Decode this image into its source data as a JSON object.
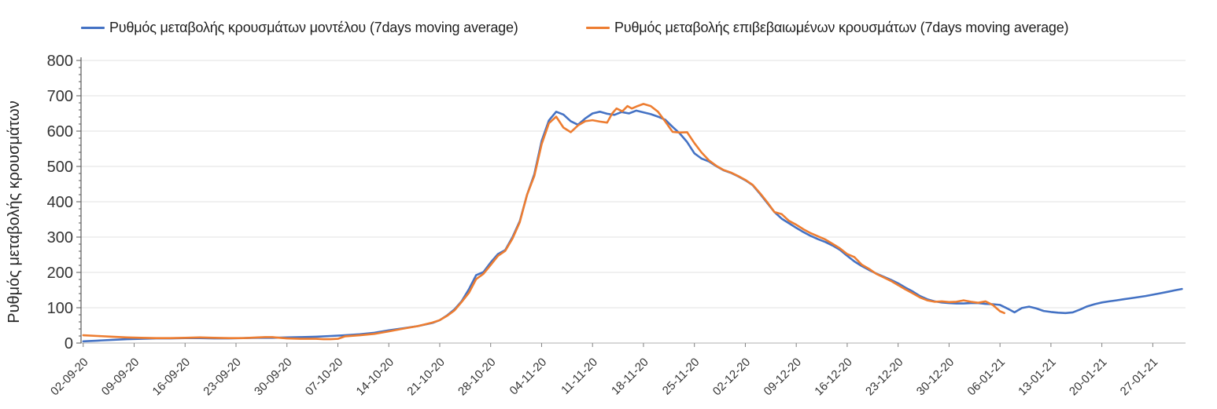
{
  "page": {
    "background": "#ffffff"
  },
  "colors": {
    "series_model": "#4472C4",
    "series_confirmed": "#ED7D31",
    "y_axis_line": "#595959",
    "x_axis_line": "#bfbfbf",
    "tick_mark": "#808080",
    "gridline": "#e2e2e2",
    "tick_label": "#333333",
    "axis_title": "#262626"
  },
  "chart_data": {
    "type": "line",
    "title": "",
    "xlabel": "",
    "ylabel": "Ρυθμός μεταβολής κρουσμάτων",
    "legend_position": "top",
    "grid": "horizontal-major",
    "x_unit": "days since 02-09-20, weekly ticks",
    "x_tick_interval_days": 7,
    "x_tick_labels": [
      "02-09-20",
      "09-09-20",
      "16-09-20",
      "23-09-20",
      "30-09-20",
      "07-10-20",
      "14-10-20",
      "21-10-20",
      "28-10-20",
      "04-11-20",
      "11-11-20",
      "18-11-20",
      "25-11-20",
      "02-12-20",
      "09-12-20",
      "16-12-20",
      "23-12-20",
      "30-12-20",
      "06-01-21",
      "13-01-21",
      "20-01-21",
      "27-01-21"
    ],
    "y_axis": {
      "min": 0,
      "max": 800,
      "tick_step": 100,
      "minor_tick_step": 20,
      "ticks": [
        "0",
        "100",
        "200",
        "300",
        "400",
        "500",
        "600",
        "700",
        "800"
      ]
    },
    "series": [
      {
        "name": "Ρυθμός μεταβολής κρουσμάτων μοντέλου (7days moving average)",
        "color": "#4472C4",
        "points": [
          [
            0,
            5
          ],
          [
            2,
            7
          ],
          [
            4,
            9
          ],
          [
            6,
            11
          ],
          [
            8,
            12
          ],
          [
            10,
            13
          ],
          [
            12,
            13
          ],
          [
            14,
            14
          ],
          [
            16,
            14
          ],
          [
            18,
            13
          ],
          [
            20,
            13
          ],
          [
            22,
            14
          ],
          [
            24,
            15
          ],
          [
            26,
            15
          ],
          [
            28,
            16
          ],
          [
            30,
            17
          ],
          [
            32,
            18
          ],
          [
            34,
            20
          ],
          [
            36,
            22
          ],
          [
            38,
            25
          ],
          [
            40,
            29
          ],
          [
            42,
            36
          ],
          [
            44,
            42
          ],
          [
            46,
            48
          ],
          [
            48,
            57
          ],
          [
            49,
            65
          ],
          [
            50,
            78
          ],
          [
            51,
            95
          ],
          [
            52,
            118
          ],
          [
            53,
            152
          ],
          [
            54,
            192
          ],
          [
            55,
            201
          ],
          [
            56,
            228
          ],
          [
            57,
            252
          ],
          [
            58,
            263
          ],
          [
            59,
            300
          ],
          [
            60,
            345
          ],
          [
            61,
            420
          ],
          [
            62,
            478
          ],
          [
            63,
            572
          ],
          [
            64,
            630
          ],
          [
            65,
            655
          ],
          [
            66,
            647
          ],
          [
            67,
            628
          ],
          [
            68,
            618
          ],
          [
            69,
            636
          ],
          [
            70,
            650
          ],
          [
            71,
            655
          ],
          [
            72,
            649
          ],
          [
            73,
            646
          ],
          [
            74,
            654
          ],
          [
            75,
            650
          ],
          [
            76,
            658
          ],
          [
            77,
            653
          ],
          [
            78,
            648
          ],
          [
            79,
            641
          ],
          [
            80,
            632
          ],
          [
            81,
            612
          ],
          [
            82,
            593
          ],
          [
            83,
            569
          ],
          [
            84,
            537
          ],
          [
            85,
            522
          ],
          [
            86,
            514
          ],
          [
            87,
            501
          ],
          [
            88,
            489
          ],
          [
            89,
            482
          ],
          [
            90,
            472
          ],
          [
            91,
            461
          ],
          [
            92,
            447
          ],
          [
            93,
            423
          ],
          [
            94,
            397
          ],
          [
            95,
            371
          ],
          [
            96,
            352
          ],
          [
            97,
            339
          ],
          [
            98,
            326
          ],
          [
            99,
            314
          ],
          [
            100,
            303
          ],
          [
            101,
            294
          ],
          [
            102,
            286
          ],
          [
            103,
            276
          ],
          [
            104,
            264
          ],
          [
            105,
            247
          ],
          [
            106,
            231
          ],
          [
            107,
            218
          ],
          [
            108,
            207
          ],
          [
            109,
            197
          ],
          [
            110,
            188
          ],
          [
            111,
            179
          ],
          [
            112,
            169
          ],
          [
            113,
            157
          ],
          [
            114,
            146
          ],
          [
            115,
            133
          ],
          [
            116,
            124
          ],
          [
            117,
            118
          ],
          [
            118,
            115
          ],
          [
            119,
            113
          ],
          [
            120,
            112
          ],
          [
            121,
            112
          ],
          [
            122,
            113
          ],
          [
            123,
            113
          ],
          [
            124,
            111
          ],
          [
            125,
            110
          ],
          [
            126,
            108
          ],
          [
            127,
            98
          ],
          [
            128,
            87
          ],
          [
            129,
            99
          ],
          [
            130,
            103
          ],
          [
            131,
            98
          ],
          [
            132,
            91
          ],
          [
            133,
            88
          ],
          [
            134,
            86
          ],
          [
            135,
            85
          ],
          [
            136,
            87
          ],
          [
            137,
            95
          ],
          [
            138,
            104
          ],
          [
            139,
            110
          ],
          [
            140,
            115
          ],
          [
            141,
            118
          ],
          [
            142,
            121
          ],
          [
            143,
            124
          ],
          [
            144,
            127
          ],
          [
            145,
            130
          ],
          [
            146,
            133
          ],
          [
            147,
            137
          ],
          [
            148,
            141
          ],
          [
            149,
            145
          ],
          [
            150,
            149
          ],
          [
            151,
            153
          ]
        ]
      },
      {
        "name": "Ρυθμός μεταβολής επιβεβαιωμένων κρουσμάτων (7days moving average)",
        "color": "#ED7D31",
        "points": [
          [
            0,
            22
          ],
          [
            2,
            20
          ],
          [
            4,
            18
          ],
          [
            6,
            16
          ],
          [
            8,
            15
          ],
          [
            10,
            14
          ],
          [
            12,
            14
          ],
          [
            14,
            15
          ],
          [
            16,
            16
          ],
          [
            18,
            15
          ],
          [
            20,
            14
          ],
          [
            22,
            14
          ],
          [
            24,
            16
          ],
          [
            25,
            17
          ],
          [
            26,
            17
          ],
          [
            27,
            15
          ],
          [
            28,
            13
          ],
          [
            30,
            12
          ],
          [
            32,
            12
          ],
          [
            33,
            11
          ],
          [
            34,
            11
          ],
          [
            35,
            12
          ],
          [
            36,
            19
          ],
          [
            38,
            22
          ],
          [
            40,
            26
          ],
          [
            42,
            33
          ],
          [
            44,
            41
          ],
          [
            46,
            48
          ],
          [
            48,
            58
          ],
          [
            49,
            65
          ],
          [
            50,
            77
          ],
          [
            51,
            92
          ],
          [
            52,
            116
          ],
          [
            53,
            142
          ],
          [
            54,
            181
          ],
          [
            55,
            196
          ],
          [
            56,
            221
          ],
          [
            57,
            247
          ],
          [
            58,
            261
          ],
          [
            59,
            296
          ],
          [
            60,
            342
          ],
          [
            61,
            420
          ],
          [
            62,
            473
          ],
          [
            63,
            563
          ],
          [
            64,
            622
          ],
          [
            65,
            641
          ],
          [
            66,
            610
          ],
          [
            67,
            597
          ],
          [
            68,
            616
          ],
          [
            69,
            628
          ],
          [
            70,
            631
          ],
          [
            71,
            627
          ],
          [
            72,
            624
          ],
          [
            72.7,
            650
          ],
          [
            73.3,
            664
          ],
          [
            74.1,
            656
          ],
          [
            74.8,
            671
          ],
          [
            75.4,
            664
          ],
          [
            76.2,
            671
          ],
          [
            77,
            677
          ],
          [
            78,
            671
          ],
          [
            79,
            655
          ],
          [
            80,
            627
          ],
          [
            81,
            598
          ],
          [
            82,
            596
          ],
          [
            83,
            597
          ],
          [
            84,
            566
          ],
          [
            85,
            539
          ],
          [
            86,
            517
          ],
          [
            87,
            502
          ],
          [
            88,
            490
          ],
          [
            89,
            483
          ],
          [
            90,
            473
          ],
          [
            91,
            462
          ],
          [
            92,
            448
          ],
          [
            93,
            425
          ],
          [
            94,
            399
          ],
          [
            95,
            371
          ],
          [
            96,
            365
          ],
          [
            97,
            346
          ],
          [
            98,
            335
          ],
          [
            99,
            322
          ],
          [
            100,
            311
          ],
          [
            101,
            302
          ],
          [
            102,
            293
          ],
          [
            103,
            281
          ],
          [
            104,
            268
          ],
          [
            105,
            252
          ],
          [
            106,
            243
          ],
          [
            107,
            222
          ],
          [
            108,
            210
          ],
          [
            109,
            196
          ],
          [
            110,
            186
          ],
          [
            111,
            176
          ],
          [
            112,
            164
          ],
          [
            113,
            152
          ],
          [
            114,
            141
          ],
          [
            115,
            129
          ],
          [
            116,
            121
          ],
          [
            117,
            117
          ],
          [
            118,
            118
          ],
          [
            119,
            116
          ],
          [
            120,
            117
          ],
          [
            121,
            121
          ],
          [
            122,
            117
          ],
          [
            123,
            114
          ],
          [
            124,
            118
          ],
          [
            125,
            108
          ],
          [
            126,
            90
          ],
          [
            126.6,
            85
          ]
        ]
      }
    ]
  }
}
